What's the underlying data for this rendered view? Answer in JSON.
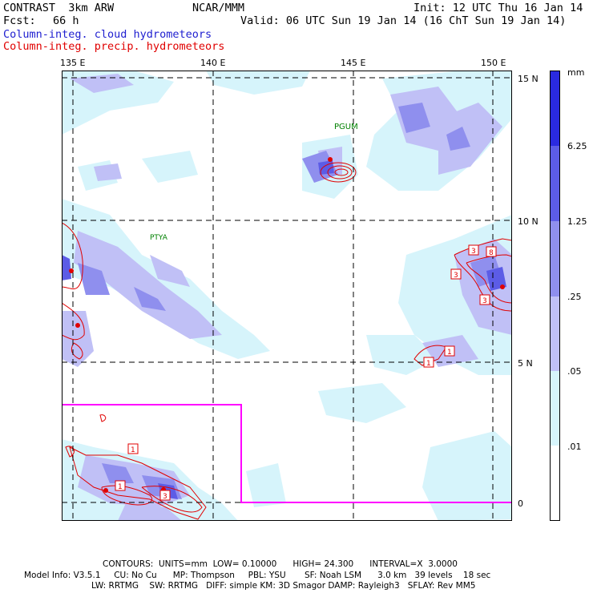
{
  "header": {
    "model": "CONTRAST  3km ARW",
    "org": "NCAR/MMM",
    "init": "Init: 12 UTC Thu 16 Jan 14",
    "fcst_label": "Fcst:",
    "fcst_value": "66 h",
    "valid": "Valid: 06 UTC Sun 19 Jan 14 (16 ChT Sun 19 Jan 14)",
    "field_cloud": "Column-integ. cloud hydrometeors",
    "field_precip": "Column-integ. precip. hydrometeors"
  },
  "map": {
    "lon_labels": [
      "135 E",
      "140 E",
      "145 E",
      "150 E"
    ],
    "lat_labels": [
      "15 N",
      "10 N",
      "5 N",
      "0"
    ],
    "stations": [
      "PGUM",
      "PTYA"
    ],
    "contour_labels": [
      "3",
      "8",
      "3",
      "3",
      "1",
      "1",
      "1",
      "1",
      "3"
    ]
  },
  "colorbar": {
    "unit": "mm",
    "ticks": [
      "6.25",
      "1.25",
      ".25",
      ".05",
      ".01"
    ],
    "colors": [
      "#2a2ae0",
      "#5c5ce6",
      "#8f8fee",
      "#c0c0f6",
      "#d6f4fb",
      "#ffffff"
    ]
  },
  "footer": {
    "contours": "CONTOURS:  UNITS=mm  LOW= 0.10000      HIGH= 24.300      INTERVAL=X  3.0000",
    "model_info": "Model Info: V3.5.1     CU: No Cu      MP: Thompson     PBL: YSU       SF: Noah LSM      3.0 km   39 levels    18 sec",
    "physics": "LW: RRTMG    SW: RRTMG   DIFF: simple KM: 3D Smagor DAMP: Rayleigh3   SFLAY: Rev MM5"
  },
  "colors": {
    "precip_contour": "#e00000",
    "domain_box": "#ff00ff",
    "station": "#008000"
  }
}
